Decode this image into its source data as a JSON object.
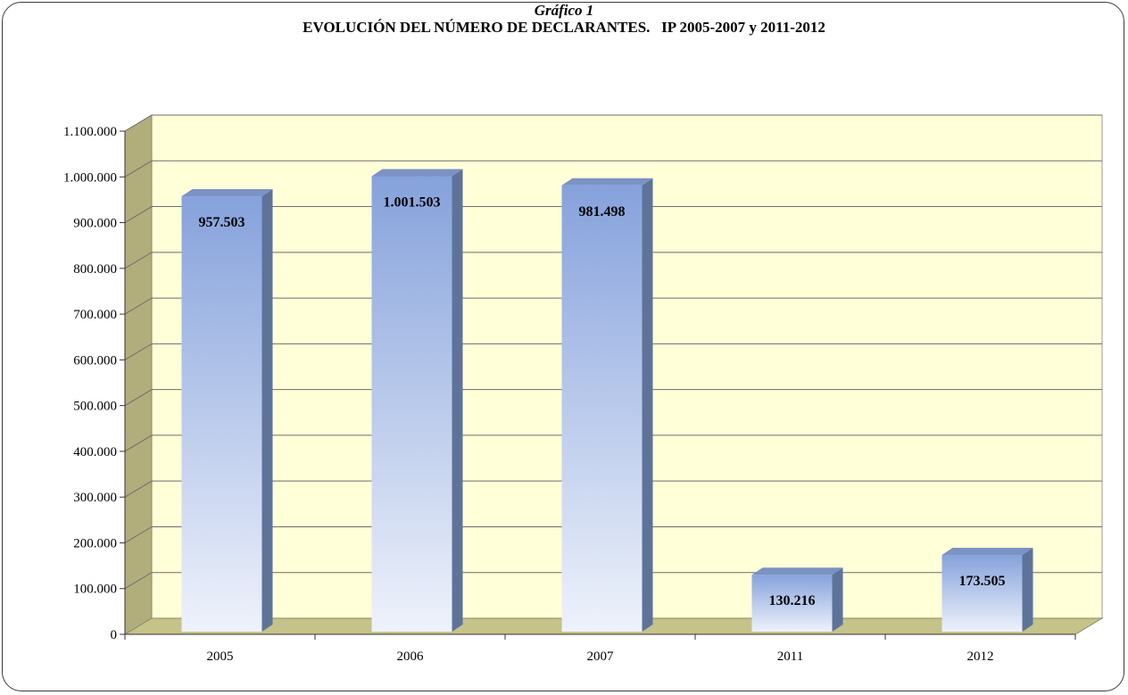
{
  "chart_data": {
    "type": "bar",
    "subtitle": "Gráfico 1",
    "title": "EVOLUCIÓN DEL NÚMERO DE DECLARANTES.   IP 2005-2007 y 2011-2012",
    "categories": [
      "2005",
      "2006",
      "2007",
      "2011",
      "2012"
    ],
    "values": [
      957503,
      1001503,
      981498,
      130216,
      173505
    ],
    "data_labels": [
      "957.503",
      "1.001.503",
      "981.498",
      "130.216",
      "173.505"
    ],
    "ylim": [
      0,
      1100000
    ],
    "yticks": [
      0,
      100000,
      200000,
      300000,
      400000,
      500000,
      600000,
      700000,
      800000,
      900000,
      1000000,
      1100000
    ],
    "ytick_labels": [
      "0",
      "100.000",
      "200.000",
      "300.000",
      "400.000",
      "500.000",
      "600.000",
      "700.000",
      "800.000",
      "900.000",
      "1.000.000",
      "1.100.000"
    ],
    "grid": true,
    "legend": "none",
    "colors": {
      "wall": "#ffffd8",
      "floor": "#c5c28a",
      "side_wall": "#b1ae7c",
      "bar_top": "#86a2dc",
      "bar_bottom": "#eef2fb",
      "bar_side": "#5d7399"
    }
  }
}
